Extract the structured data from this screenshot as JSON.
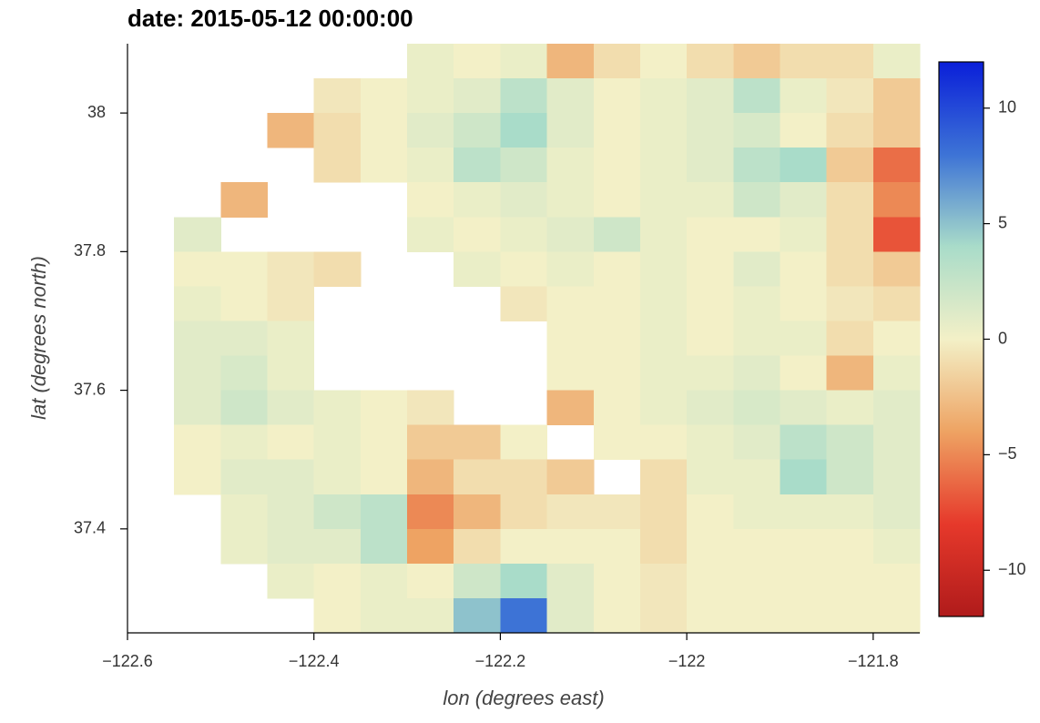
{
  "chart_data": {
    "type": "heatmap",
    "title": "date: 2015-05-12 00:00:00",
    "x_label": "lon (degrees east)",
    "y_label": "lat (degrees north)",
    "x": [
      -122.575,
      -122.525,
      -122.475,
      -122.425,
      -122.375,
      -122.325,
      -122.275,
      -122.225,
      -122.175,
      -122.125,
      -122.075,
      -122.025,
      -121.975,
      -121.925,
      -121.875,
      -121.825,
      -121.775
    ],
    "y": [
      38.075,
      38.025,
      37.975,
      37.925,
      37.875,
      37.825,
      37.775,
      37.725,
      37.675,
      37.625,
      37.575,
      37.525,
      37.475,
      37.425,
      37.375,
      37.325,
      37.275
    ],
    "z": [
      [
        null,
        null,
        null,
        null,
        null,
        null,
        0.5,
        0,
        0.5,
        -3,
        -1,
        0,
        -1,
        -2,
        -1,
        -1,
        0.5
      ],
      [
        null,
        null,
        null,
        null,
        -0.5,
        0,
        0.5,
        1,
        3,
        1,
        0,
        0.5,
        1,
        3,
        0.5,
        -0.5,
        -2
      ],
      [
        null,
        null,
        null,
        -3,
        -1,
        0,
        1,
        2,
        4,
        1,
        0,
        0.5,
        1,
        1.5,
        0,
        -1,
        -2
      ],
      [
        null,
        null,
        null,
        null,
        -1,
        0,
        0.5,
        3,
        2,
        0.5,
        0,
        0.5,
        1,
        3,
        4,
        -2,
        -6
      ],
      [
        null,
        null,
        -3,
        null,
        null,
        null,
        0,
        0.5,
        1,
        0.5,
        0,
        0.5,
        0.5,
        2,
        1,
        -1,
        -5
      ],
      [
        null,
        1,
        null,
        null,
        null,
        null,
        0.5,
        0,
        0.5,
        1,
        2,
        0.5,
        0,
        0,
        0.5,
        -1,
        -7
      ],
      [
        null,
        0,
        0,
        -0.5,
        -1,
        null,
        null,
        0.5,
        0,
        0.5,
        0,
        0.5,
        0,
        1,
        0,
        -1,
        -2
      ],
      [
        null,
        0.5,
        0,
        -0.5,
        null,
        null,
        null,
        null,
        -0.5,
        0,
        0,
        0.5,
        0,
        0.5,
        0,
        -0.5,
        -1
      ],
      [
        null,
        1,
        1,
        0.5,
        null,
        null,
        null,
        null,
        null,
        0,
        0,
        0.5,
        0,
        0.5,
        0.5,
        -1,
        0
      ],
      [
        null,
        1,
        1.5,
        0.5,
        null,
        null,
        null,
        null,
        null,
        0,
        0,
        0.5,
        0.5,
        1,
        0,
        -3,
        0.5
      ],
      [
        null,
        1,
        2,
        1,
        0.5,
        0,
        -0.5,
        null,
        null,
        -3,
        0,
        0.5,
        1,
        1.5,
        1,
        0.5,
        1
      ],
      [
        null,
        0,
        0.5,
        0,
        0.5,
        0,
        -2,
        -2,
        0,
        null,
        0,
        0,
        0.5,
        1,
        3,
        2,
        1
      ],
      [
        null,
        0,
        1,
        1,
        0.5,
        0,
        -3,
        -1,
        -1,
        -2,
        null,
        -1,
        0.5,
        0.5,
        4,
        2,
        1
      ],
      [
        null,
        null,
        0.5,
        1,
        2,
        3,
        -5,
        -3,
        -1,
        -0.5,
        -0.5,
        -1,
        0,
        0.5,
        0.5,
        0.5,
        1
      ],
      [
        null,
        null,
        0.5,
        1,
        1,
        3,
        -4,
        -1,
        0,
        0,
        0,
        -1,
        0,
        0,
        0,
        0,
        0.5
      ],
      [
        null,
        null,
        null,
        0.5,
        0,
        0.5,
        0,
        2,
        4,
        1,
        0,
        -0.5,
        0,
        0,
        0,
        0,
        0
      ],
      [
        null,
        null,
        null,
        null,
        0,
        0.5,
        0.5,
        5,
        8,
        1,
        0,
        -0.5,
        0,
        0,
        0,
        0,
        0
      ]
    ],
    "xlim": [
      -122.6,
      -121.75
    ],
    "ylim": [
      37.25,
      38.1
    ],
    "xticks": [
      {
        "value": -122.6,
        "label": "−122.6"
      },
      {
        "value": -122.4,
        "label": "−122.4"
      },
      {
        "value": -122.2,
        "label": "−122.2"
      },
      {
        "value": -122,
        "label": "−122"
      },
      {
        "value": -121.8,
        "label": "−121.8"
      }
    ],
    "yticks": [
      37.4,
      37.6,
      37.8,
      38
    ],
    "clim": [
      -12,
      12
    ],
    "cticks": [
      {
        "value": -10,
        "label": "−10"
      },
      {
        "value": -5,
        "label": "−5"
      },
      0,
      5,
      10
    ],
    "colormap": [
      "#b01b1b",
      "#e6392b",
      "#eea363",
      "#f3f0c7",
      "#a9dcc9",
      "#3d73d6",
      "#0a1fd9"
    ]
  }
}
